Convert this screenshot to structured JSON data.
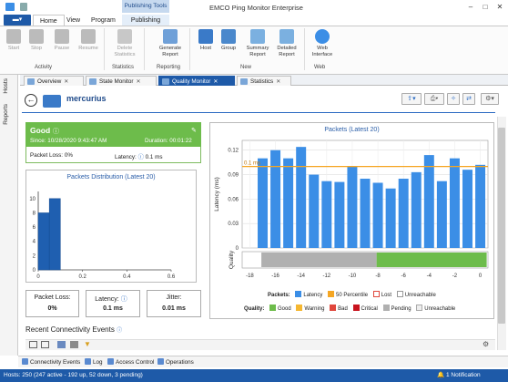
{
  "window": {
    "title": "EMCO Ping Monitor Enterprise",
    "context_tab": "Publishing Tools"
  },
  "ribbon": {
    "tabs": [
      "Home",
      "View",
      "Program",
      "Publishing"
    ],
    "buttons": [
      {
        "label": "Start",
        "group": "Activity",
        "enabled": false
      },
      {
        "label": "Stop",
        "group": "Activity",
        "enabled": false
      },
      {
        "label": "Pause",
        "group": "Activity",
        "enabled": false
      },
      {
        "label": "Resume",
        "group": "Activity",
        "enabled": false
      },
      {
        "label": "Delete Statistics",
        "group": "Statistics",
        "enabled": false
      },
      {
        "label": "Generate Report",
        "group": "Reporting",
        "enabled": true
      },
      {
        "label": "Host",
        "group": "New",
        "enabled": true
      },
      {
        "label": "Group",
        "group": "New",
        "enabled": true
      },
      {
        "label": "Summary Report",
        "group": "New",
        "enabled": true
      },
      {
        "label": "Detailed Report",
        "group": "New",
        "enabled": true
      },
      {
        "label": "Web Interface",
        "group": "Web",
        "enabled": true
      }
    ],
    "groups": [
      "Activity",
      "Statistics",
      "Reporting",
      "New",
      "Web"
    ]
  },
  "doc_tabs": [
    {
      "label": "Overview",
      "active": false
    },
    {
      "label": "State Monitor",
      "active": false
    },
    {
      "label": "Quality Monitor",
      "active": true
    },
    {
      "label": "Statistics",
      "active": false
    }
  ],
  "sidebar": {
    "items": [
      "Hosts",
      "Reports"
    ]
  },
  "host": {
    "name": "mercurius"
  },
  "status": {
    "state": "Good",
    "since": "Since: 10/28/2020 9:43:47 AM",
    "duration": "Duration: 00:01:22",
    "packet_loss_label": "Packet Loss:",
    "packet_loss_value": "0%",
    "latency_label": "Latency:",
    "latency_value": "0.1 ms"
  },
  "distribution": {
    "title": "Packets Distribution (Latest 20)"
  },
  "metrics": [
    {
      "label": "Packet Loss:",
      "value": "0%"
    },
    {
      "label": "Latency:",
      "value": "0.1 ms"
    },
    {
      "label": "Jitter:",
      "value": "0.01 ms"
    }
  ],
  "packets_chart": {
    "title": "Packets (Latest 20)",
    "ylabel": "Latency (ms)",
    "quality_label": "Quality",
    "percentile_label": "0.1 ms"
  },
  "packets_legend": {
    "title": "Packets:",
    "items": [
      "Latency",
      "50 Percentile",
      "Lost",
      "Unreachable"
    ]
  },
  "quality_legend": {
    "title": "Quality:",
    "items": [
      "Good",
      "Warning",
      "Bad",
      "Critical",
      "Pending",
      "Unreachable"
    ]
  },
  "colors": {
    "latency": "#3b8ee6",
    "percentile": "#f5a623",
    "good": "#6dbc4b",
    "warning": "#f5b731",
    "bad": "#e0473c",
    "critical": "#c8141e",
    "pending": "#b0b0b0",
    "accent": "#1e5aa8"
  },
  "chart_data": [
    {
      "type": "bar",
      "title": "Packets Distribution (Latest 20)",
      "x": [
        0.0,
        0.05,
        0.1
      ],
      "values": [
        8,
        10,
        0
      ],
      "xlim": [
        0,
        0.6
      ],
      "ylim": [
        0,
        11
      ],
      "xticks": [
        "0",
        "0.2",
        "0.4",
        "0.6"
      ],
      "yticks": [
        "0",
        "2",
        "4",
        "6",
        "8",
        "10"
      ],
      "grid": false
    },
    {
      "type": "bar",
      "title": "Packets (Latest 20)",
      "ylabel": "Latency (ms)",
      "x": [
        -17,
        -16,
        -15,
        -14,
        -13,
        -12,
        -11,
        -10,
        -9,
        -8,
        -7,
        -6,
        -5,
        -4,
        -3,
        -2,
        -1,
        0
      ],
      "values": [
        0.11,
        0.12,
        0.11,
        0.124,
        0.09,
        0.082,
        0.081,
        0.1,
        0.085,
        0.08,
        0.073,
        0.085,
        0.093,
        0.114,
        0.082,
        0.11,
        0.096,
        0.102
      ],
      "percentile_50": 0.1,
      "xlim": [
        -18.6,
        0.6
      ],
      "ylim": [
        0,
        0.132
      ],
      "xticks": [
        "-18",
        "-16",
        "-14",
        "-12",
        "-10",
        "-8",
        "-6",
        "-4",
        "-2",
        "0"
      ],
      "yticks": [
        "0",
        "0.03",
        "0.06",
        "0.09",
        "0.12"
      ],
      "quality_band": [
        {
          "from": -17.1,
          "to": -8.1,
          "quality": "Pending"
        },
        {
          "from": -8.1,
          "to": 0.5,
          "quality": "Good"
        }
      ],
      "grid": true
    }
  ],
  "recent": {
    "title": "Recent Connectivity Events"
  },
  "bottom_tabs": [
    "Connectivity Events",
    "Log",
    "Access Control",
    "Operations"
  ],
  "statusbar": {
    "hosts": "Hosts: 250 (247 active - 192 up, 52 down, 3 pending)",
    "notifications": "1 Notification"
  }
}
